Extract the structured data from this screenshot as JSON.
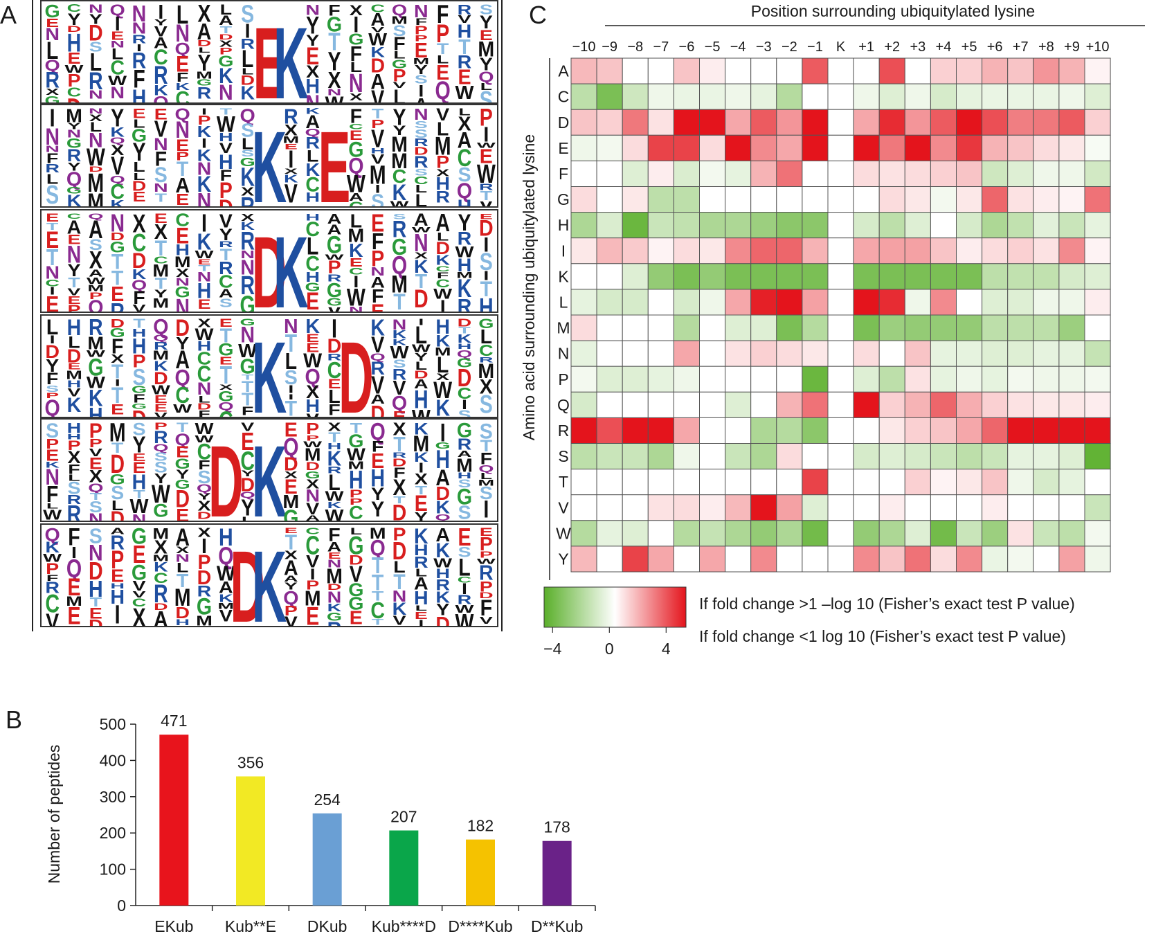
{
  "panels": {
    "a": "A",
    "b": "B",
    "c": "C"
  },
  "sequence_logos": {
    "panel": "A",
    "motifs": [
      "EK",
      "K E",
      "DK",
      "K D",
      "D K",
      "DK"
    ],
    "alphabet": [
      "K",
      "L",
      "E",
      "D",
      "A",
      "R",
      "V",
      "S",
      "P",
      "N",
      "G",
      "Y",
      "Q",
      "X",
      "C",
      "I",
      "T",
      "M",
      "F",
      "H",
      "W"
    ],
    "colors": {
      "black": "#111111",
      "red": "#d81e1e",
      "blue": "#1f4fa0",
      "green": "#2a9a3a",
      "purple": "#8a2a90",
      "lightblue": "#86b8e0"
    },
    "motif_color": {
      "E": "#d81e1e",
      "D": "#d81e1e",
      "K": "#1f4fa0"
    }
  },
  "chart_data": [
    {
      "panel": "B",
      "type": "bar",
      "ylabel": "Number of peptides",
      "categories": [
        "EKub",
        "Kub**E",
        "DKub",
        "Kub****D",
        "D****Kub",
        "D**Kub"
      ],
      "values": [
        471,
        356,
        254,
        207,
        182,
        178
      ],
      "data_labels": [
        "471",
        "356",
        "254",
        "207",
        "182",
        "178"
      ],
      "colors": [
        "#e8141c",
        "#f2e924",
        "#6a9fd4",
        "#0aa64a",
        "#f5c200",
        "#6a2288"
      ],
      "ylim": [
        0,
        500
      ],
      "yticks": [
        "0",
        "100",
        "200",
        "300",
        "400",
        "500"
      ],
      "grid": false
    },
    {
      "panel": "C",
      "type": "heatmap",
      "title": "Position surrounding ubiquitylated lysine",
      "ylabel": "Amino acid surrounding ubiquitylated lysine",
      "x": [
        "−10",
        "−9",
        "−8",
        "−7",
        "−6",
        "−5",
        "−4",
        "−3",
        "−2",
        "−1",
        "K",
        "+1",
        "+2",
        "+3",
        "+4",
        "+5",
        "+6",
        "+7",
        "+8",
        "+9",
        "+10"
      ],
      "y": [
        "A",
        "C",
        "D",
        "E",
        "F",
        "G",
        "H",
        "I",
        "K",
        "L",
        "M",
        "N",
        "P",
        "Q",
        "R",
        "S",
        "T",
        "V",
        "W",
        "Y"
      ],
      "values": [
        [
          1.2,
          1.0,
          0,
          0,
          1.0,
          0.3,
          0,
          0,
          0,
          2.8,
          0,
          0,
          3.0,
          0,
          0.8,
          0.8,
          1.3,
          1.0,
          1.8,
          1.3,
          0.2
        ],
        [
          -1.6,
          -3.2,
          -1.2,
          -0.4,
          -0.5,
          -0.5,
          -0.4,
          -0.6,
          -1.8,
          0,
          0,
          -0.4,
          -0.8,
          -0.4,
          -1.0,
          -0.6,
          -0.5,
          -0.5,
          -0.5,
          -0.4,
          -0.8
        ],
        [
          1.0,
          0.8,
          2.3,
          0.5,
          4.3,
          4.2,
          1.5,
          2.8,
          1.8,
          4.6,
          0,
          1.5,
          3.6,
          1.8,
          2.8,
          4.4,
          3.0,
          2.2,
          2.3,
          2.8,
          0.8
        ],
        [
          -0.4,
          -0.3,
          0.6,
          3.2,
          3.2,
          0.6,
          4.5,
          2.0,
          1.5,
          4.6,
          0,
          4.2,
          2.3,
          4.6,
          2.0,
          3.4,
          1.3,
          1.0,
          0.6,
          0.4,
          -0.2
        ],
        [
          0,
          0,
          -0.8,
          0.3,
          -0.9,
          -0.3,
          -0.6,
          1.3,
          2.4,
          0,
          0,
          0.6,
          0.5,
          0.6,
          0.8,
          1.0,
          -1.2,
          -0.8,
          -0.4,
          -0.4,
          -1.1
        ],
        [
          0.6,
          0,
          0.4,
          -1.6,
          -1.6,
          0,
          0,
          0,
          0,
          0,
          0,
          0,
          0.6,
          0.4,
          -0.3,
          0.4,
          2.6,
          0.5,
          0.3,
          0.2,
          2.4
        ],
        [
          -2.0,
          -0.9,
          -3.6,
          -1.3,
          -1.5,
          -2.0,
          -2.0,
          -2.4,
          -2.8,
          -2.8,
          0,
          -1.0,
          -1.6,
          -0.8,
          0,
          -1.0,
          -2.0,
          -1.5,
          -0.7,
          -1.3,
          -0.6
        ],
        [
          0.4,
          1.2,
          0.9,
          0.2,
          0.6,
          0.4,
          2.0,
          2.6,
          2.6,
          1.3,
          0,
          1.5,
          1.6,
          1.6,
          1.0,
          0.3,
          0.6,
          0.8,
          0.5,
          2.0,
          0.2
        ],
        [
          0,
          0,
          -0.8,
          -2.6,
          -3.2,
          -2.6,
          -3.2,
          -3.2,
          -3.2,
          -3.2,
          0,
          -3.2,
          -3.2,
          -3.2,
          -3.2,
          -3.2,
          -1.6,
          -1.5,
          -1.5,
          -1.0,
          -0.8
        ],
        [
          -0.6,
          -1.0,
          -1.0,
          0,
          -1.0,
          -0.4,
          1.5,
          3.8,
          4.6,
          1.6,
          0,
          4.6,
          3.6,
          -0.4,
          2.0,
          0,
          -0.8,
          -0.8,
          -0.4,
          -0.4,
          0.3
        ],
        [
          0.6,
          0,
          0,
          0,
          -1.8,
          0,
          -0.8,
          -0.8,
          -3.2,
          -1.8,
          0,
          -3.2,
          -2.4,
          -2.6,
          -2.6,
          -2.6,
          -1.6,
          -1.6,
          -1.6,
          -2.4,
          0
        ],
        [
          -0.6,
          0,
          0,
          0,
          1.5,
          0,
          0.5,
          0.8,
          0.6,
          0.4,
          0,
          0.6,
          0,
          1.0,
          -0.6,
          -0.6,
          -0.8,
          -0.8,
          -0.6,
          -0.6,
          -1.4
        ],
        [
          -0.3,
          -0.8,
          -0.8,
          -0.6,
          -0.4,
          0,
          0,
          0,
          0,
          -3.6,
          0,
          -0.8,
          -1.6,
          0.5,
          -0.6,
          -0.4,
          -0.6,
          -0.3,
          -0.4,
          -0.4,
          -0.3
        ],
        [
          -1.0,
          0,
          0,
          0,
          0,
          0,
          -0.8,
          0,
          1.3,
          2.4,
          0,
          4.3,
          0.8,
          1.3,
          2.6,
          1.4,
          0.8,
          0.5,
          0.4,
          0.4,
          0.3
        ],
        [
          4.0,
          3.0,
          4.0,
          4.4,
          1.5,
          0,
          0,
          -2.0,
          -1.8,
          -2.8,
          0,
          0,
          0.4,
          0.8,
          1.0,
          1.5,
          2.6,
          4.2,
          4.2,
          4.4,
          4.2
        ],
        [
          -1.6,
          -1.3,
          -1.3,
          -2.0,
          -0.4,
          0,
          -1.3,
          -2.0,
          0.6,
          0,
          0,
          -1.0,
          -0.8,
          -1.0,
          -1.3,
          -1.6,
          -1.3,
          -0.6,
          -0.6,
          -0.8,
          -3.8
        ],
        [
          0,
          0,
          0,
          0,
          0,
          0,
          0,
          0,
          0,
          3.2,
          0,
          0,
          0,
          0.8,
          0.2,
          0.4,
          1.0,
          -0.4,
          -1.0,
          -0.6,
          0
        ],
        [
          0,
          0,
          0,
          0.5,
          0.6,
          0.3,
          1.2,
          4.2,
          1.6,
          -0.8,
          0,
          0,
          0.3,
          0,
          0,
          0,
          0.3,
          0,
          0,
          0,
          -1.3
        ],
        [
          -1.8,
          -0.6,
          -0.8,
          0,
          -1.8,
          -1.4,
          -2.0,
          -2.6,
          -2.0,
          -3.4,
          0,
          -2.6,
          -2.0,
          -0.8,
          -3.4,
          -1.3,
          -2.4,
          0.5,
          -1.3,
          -1.6,
          -0.3
        ],
        [
          1.2,
          0,
          3.2,
          1.5,
          0,
          1.5,
          0,
          2.0,
          0,
          0,
          0,
          2.0,
          1.0,
          2.4,
          0.6,
          2.0,
          -0.5,
          -0.3,
          0,
          1.6,
          -0.4
        ]
      ],
      "color_min": "#5aaf2a",
      "color_mid": "#ffffff",
      "color_max": "#e4141c",
      "colorbar": {
        "range": [
          -4,
          4
        ],
        "ticks": [
          "−4",
          "0",
          "4"
        ]
      },
      "legend_lines": [
        "If fold change >1 –log 10 (Fisher’s exact test P value)",
        "If fold change <1 log 10 (Fisher’s exact test P value)"
      ]
    }
  ]
}
